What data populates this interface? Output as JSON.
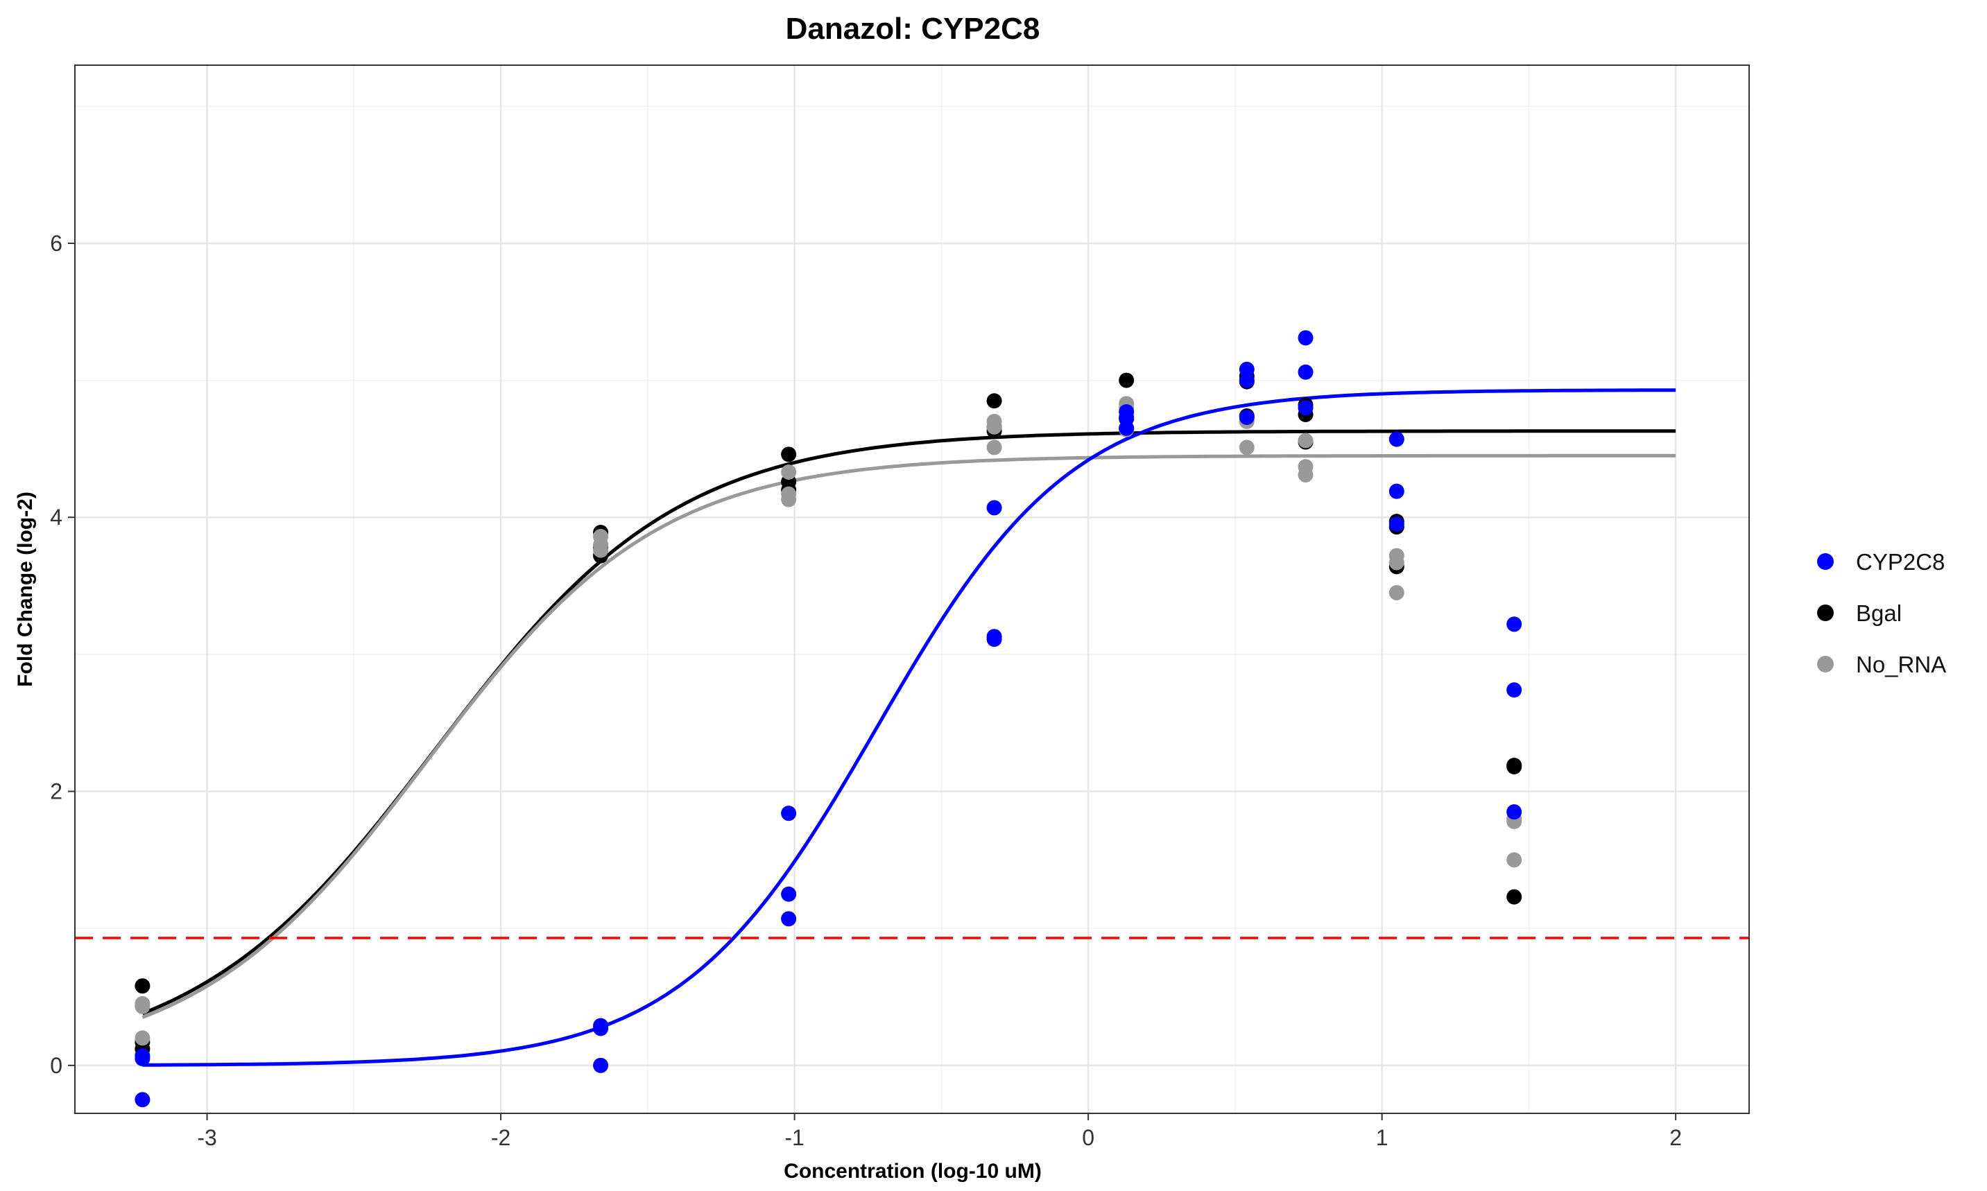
{
  "chart_data": {
    "type": "scatter",
    "title": "Danazol: CYP2C8",
    "xlabel": "Concentration (log-10 uM)",
    "ylabel": "Fold Change (log-2)",
    "xlim": [
      -3.45,
      2.25
    ],
    "ylim": [
      -0.35,
      7.3
    ],
    "x_ticks": [
      -3,
      -2,
      -1,
      0,
      1,
      2
    ],
    "x_tick_labels": [
      "-3",
      "-2",
      "-1",
      "0",
      "1",
      "2"
    ],
    "y_ticks": [
      0,
      2,
      4,
      6
    ],
    "y_tick_labels": [
      "0",
      "2",
      "4",
      "6"
    ],
    "grid": true,
    "legend_position": "right",
    "threshold": {
      "y": 0.93,
      "color": "#ff0000",
      "style": "dashed"
    },
    "series": [
      {
        "name": "CYP2C8",
        "color": "#0000ff",
        "points": [
          [
            -3.22,
            0.05
          ],
          [
            -3.22,
            0.07
          ],
          [
            -3.22,
            -0.25
          ],
          [
            -1.66,
            0.29
          ],
          [
            -1.66,
            0.27
          ],
          [
            -1.66,
            0.0
          ],
          [
            -1.02,
            1.84
          ],
          [
            -1.02,
            1.25
          ],
          [
            -1.02,
            1.07
          ],
          [
            -0.32,
            4.07
          ],
          [
            -0.32,
            3.13
          ],
          [
            -0.32,
            3.11
          ],
          [
            0.13,
            4.77
          ],
          [
            0.13,
            4.73
          ],
          [
            0.13,
            4.65
          ],
          [
            0.54,
            5.08
          ],
          [
            0.54,
            5.0
          ],
          [
            0.54,
            4.73
          ],
          [
            0.74,
            5.31
          ],
          [
            0.74,
            5.06
          ],
          [
            0.74,
            4.8
          ],
          [
            1.05,
            4.57
          ],
          [
            1.05,
            4.19
          ],
          [
            1.05,
            3.95
          ],
          [
            1.45,
            3.22
          ],
          [
            1.45,
            2.74
          ],
          [
            1.45,
            1.85
          ]
        ],
        "curve": {
          "bottom": 0.0,
          "top": 4.93,
          "logEC50": -0.72,
          "hill": 1.3,
          "x_range": [
            -3.22,
            2.0
          ]
        }
      },
      {
        "name": "Bgal",
        "color": "#000000",
        "points": [
          [
            -3.22,
            0.58
          ],
          [
            -3.22,
            0.17
          ],
          [
            -3.22,
            0.12
          ],
          [
            -1.66,
            3.89
          ],
          [
            -1.66,
            3.78
          ],
          [
            -1.66,
            3.72
          ],
          [
            -1.02,
            4.46
          ],
          [
            -1.02,
            4.26
          ],
          [
            -1.02,
            4.2
          ],
          [
            -0.32,
            4.85
          ],
          [
            -0.32,
            4.66
          ],
          [
            -0.32,
            4.63
          ],
          [
            0.13,
            5.0
          ],
          [
            0.13,
            4.72
          ],
          [
            0.13,
            4.65
          ],
          [
            0.54,
            5.03
          ],
          [
            0.54,
            4.99
          ],
          [
            0.54,
            4.74
          ],
          [
            0.74,
            4.82
          ],
          [
            0.74,
            4.75
          ],
          [
            0.74,
            4.55
          ],
          [
            1.05,
            3.97
          ],
          [
            1.05,
            3.93
          ],
          [
            1.05,
            3.64
          ],
          [
            1.45,
            2.19
          ],
          [
            1.45,
            2.18
          ],
          [
            1.45,
            1.23
          ]
        ],
        "curve": {
          "bottom": 0.0,
          "top": 4.63,
          "logEC50": -2.22,
          "hill": 1.05,
          "x_range": [
            -3.22,
            2.0
          ]
        }
      },
      {
        "name": "No_RNA",
        "color": "#999999",
        "points": [
          [
            -3.22,
            0.45
          ],
          [
            -3.22,
            0.43
          ],
          [
            -3.22,
            0.2
          ],
          [
            -1.66,
            3.86
          ],
          [
            -1.66,
            3.8
          ],
          [
            -1.66,
            3.76
          ],
          [
            -1.02,
            4.33
          ],
          [
            -1.02,
            4.17
          ],
          [
            -1.02,
            4.13
          ],
          [
            -0.32,
            4.7
          ],
          [
            -0.32,
            4.66
          ],
          [
            -0.32,
            4.51
          ],
          [
            0.13,
            4.83
          ],
          [
            0.13,
            4.8
          ],
          [
            0.13,
            4.64
          ],
          [
            0.54,
            4.72
          ],
          [
            0.54,
            4.7
          ],
          [
            0.54,
            4.51
          ],
          [
            0.74,
            4.56
          ],
          [
            0.74,
            4.37
          ],
          [
            0.74,
            4.31
          ],
          [
            1.05,
            3.72
          ],
          [
            1.05,
            3.67
          ],
          [
            1.05,
            3.45
          ],
          [
            1.45,
            1.8
          ],
          [
            1.45,
            1.78
          ],
          [
            1.45,
            1.5
          ]
        ],
        "curve": {
          "bottom": 0.0,
          "top": 4.45,
          "logEC50": -2.25,
          "hill": 1.1,
          "x_range": [
            -3.22,
            2.0
          ]
        }
      }
    ]
  }
}
